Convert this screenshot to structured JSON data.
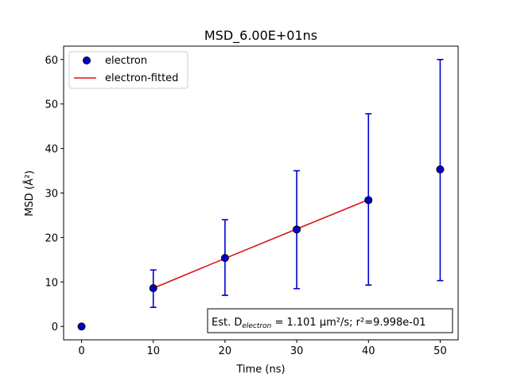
{
  "chart_data": {
    "type": "scatter",
    "title": "MSD_6.00E+01ns",
    "xlabel": "Time (ns)",
    "ylabel": "MSD (Å²)",
    "xlim": [
      -2.5,
      52.5
    ],
    "ylim": [
      -3,
      63
    ],
    "xticks": [
      0,
      10,
      20,
      30,
      40,
      50
    ],
    "yticks": [
      0,
      10,
      20,
      30,
      40,
      50,
      60
    ],
    "grid": false,
    "legend_position": "top-left",
    "series": [
      {
        "name": "electron",
        "kind": "points-with-errorbars",
        "marker_color": "#0000cc",
        "errorbar_color": "#0000cc",
        "points": [
          {
            "x": 0,
            "y": 0,
            "err_low": 0,
            "err_high": 0
          },
          {
            "x": 10,
            "y": 8.6,
            "err_low": 4.3,
            "err_high": 12.7
          },
          {
            "x": 20,
            "y": 15.4,
            "err_low": 7.0,
            "err_high": 24.0
          },
          {
            "x": 30,
            "y": 21.8,
            "err_low": 8.5,
            "err_high": 35.0
          },
          {
            "x": 40,
            "y": 28.4,
            "err_low": 9.3,
            "err_high": 47.8
          },
          {
            "x": 50,
            "y": 35.3,
            "err_low": 10.3,
            "err_high": 60.0
          }
        ]
      },
      {
        "name": "electron-fitted",
        "kind": "line",
        "color": "#dd1111",
        "x": [
          10,
          20,
          30,
          40
        ],
        "y": [
          8.6,
          15.3,
          21.9,
          28.5
        ]
      }
    ],
    "annotation": {
      "prefix": "Est. D",
      "subscript": "electron",
      "value_text": " = 1.101  μm²/s; r²=9.998e-01",
      "position": "bottom-right"
    }
  }
}
